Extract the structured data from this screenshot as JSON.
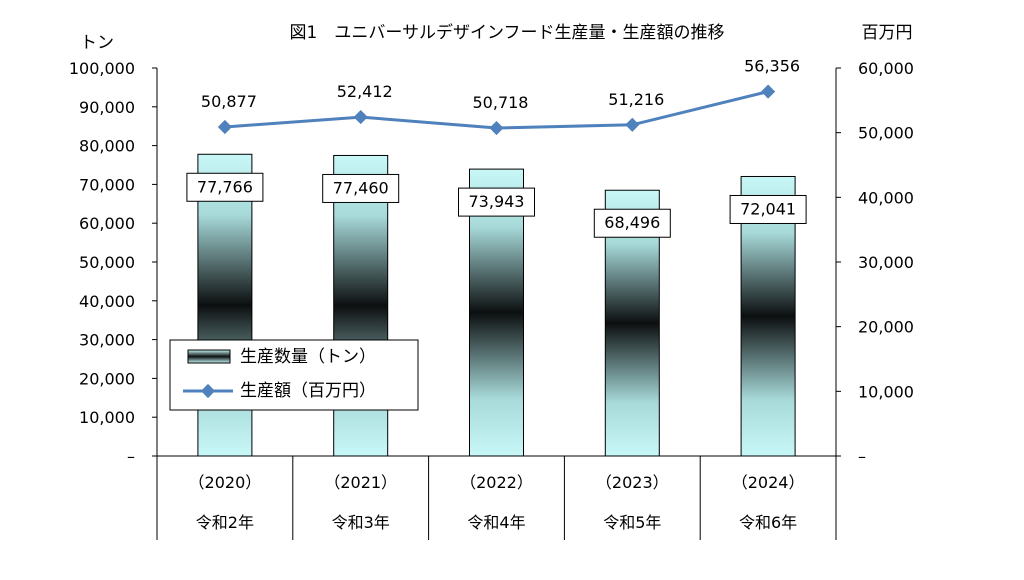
{
  "chart_data": {
    "type": "bar",
    "title": "図1　ユニバーサルデザインフード生産量・生産額の推移",
    "left_axis_unit": "トン",
    "right_axis_unit": "百万円",
    "left_ticks": [
      "–",
      "10,000",
      "20,000",
      "30,000",
      "40,000",
      "50,000",
      "60,000",
      "70,000",
      "80,000",
      "90,000",
      "100,000"
    ],
    "right_ticks": [
      "–",
      "10,000",
      "20,000",
      "30,000",
      "40,000",
      "50,000",
      "60,000"
    ],
    "ylim_left": [
      0,
      100000
    ],
    "ylim_right": [
      0,
      60000
    ],
    "categories": [
      {
        "year": "（2020）",
        "era": "令和2年"
      },
      {
        "year": "（2021）",
        "era": "令和3年"
      },
      {
        "year": "（2022）",
        "era": "令和4年"
      },
      {
        "year": "（2023）",
        "era": "令和5年"
      },
      {
        "year": "（2024）",
        "era": "令和6年"
      }
    ],
    "series": [
      {
        "name": "生産数量（トン）",
        "kind": "bar",
        "axis": "left",
        "values": [
          77766,
          77460,
          73943,
          68496,
          72041
        ],
        "labels": [
          "77,766",
          "77,460",
          "73,943",
          "68,496",
          "72,041"
        ]
      },
      {
        "name": "生産額（百万円）",
        "kind": "line",
        "axis": "right",
        "color": "#4f81bd",
        "values": [
          50877,
          52412,
          50718,
          51216,
          56356
        ],
        "labels": [
          "50,877",
          "52,412",
          "50,718",
          "51,216",
          "56,356"
        ]
      }
    ],
    "legend": "left-center",
    "grid": false
  }
}
